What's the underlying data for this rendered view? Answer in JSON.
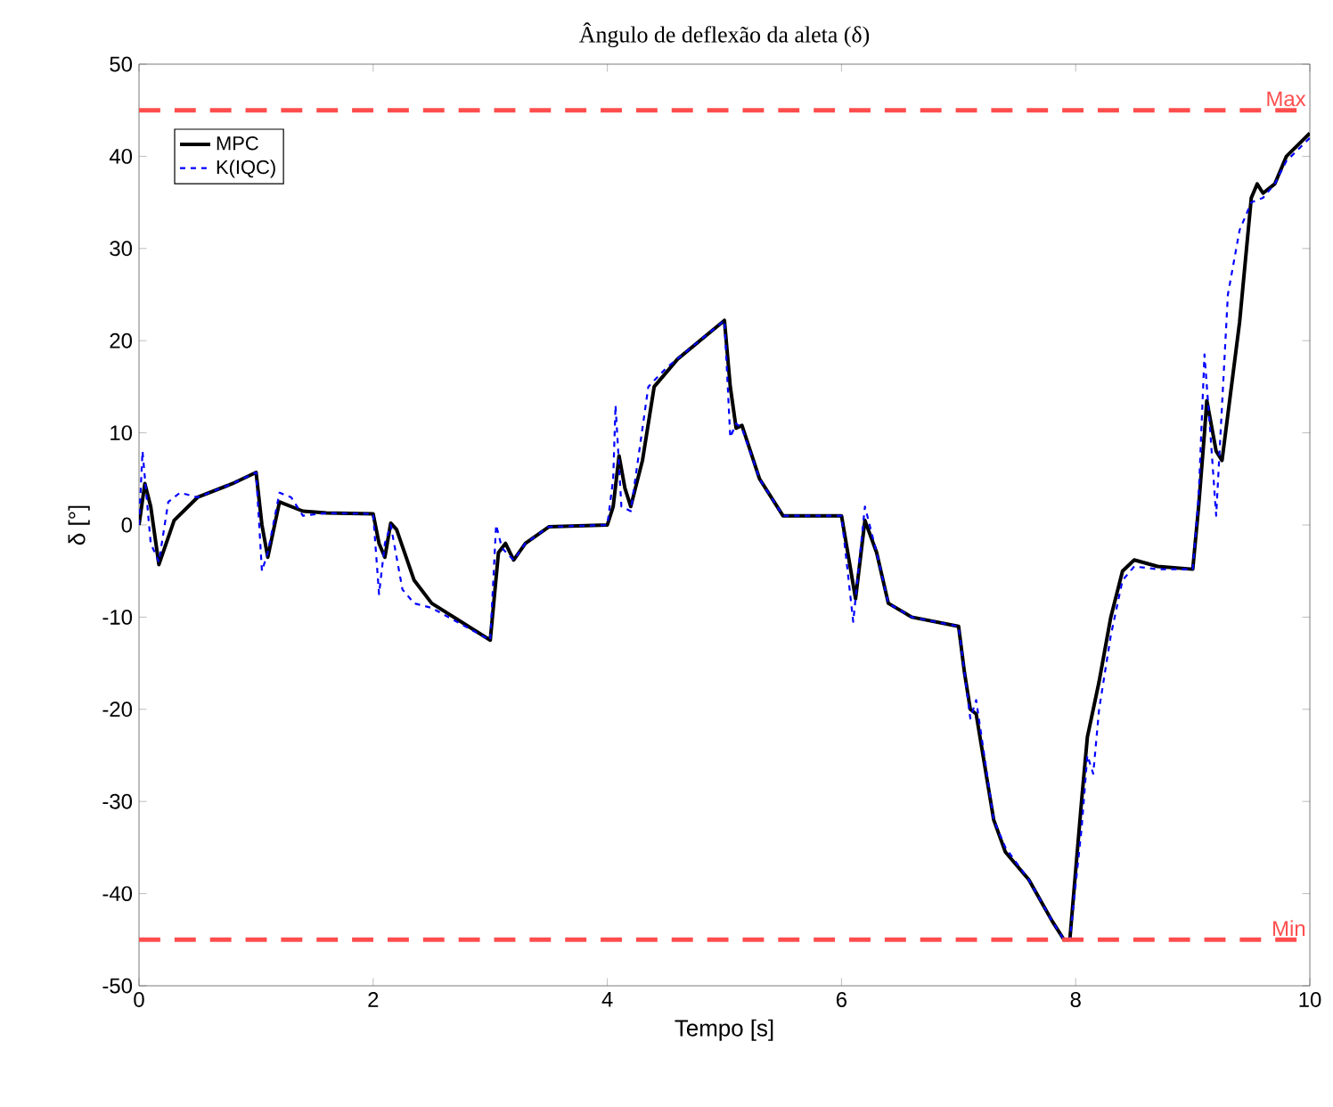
{
  "chart_data": {
    "type": "line",
    "title": "Ângulo de deflexão da aleta (δ)",
    "xlabel": "Tempo [s]",
    "ylabel": "δ [°]",
    "xlim": [
      0,
      10
    ],
    "ylim": [
      -50,
      50
    ],
    "xticks": [
      0,
      2,
      4,
      6,
      8,
      10
    ],
    "yticks": [
      -50,
      -40,
      -30,
      -20,
      -10,
      0,
      10,
      20,
      30,
      40,
      50
    ],
    "grid": false,
    "legend": "top left",
    "ref_lines": [
      {
        "axis": "y",
        "value": 45,
        "label": "Max",
        "color": "#ff4d4d",
        "line_style": "dashed"
      },
      {
        "axis": "y",
        "value": -45,
        "label": "Min",
        "color": "#ff4d4d",
        "line_style": "dashed"
      }
    ],
    "series": [
      {
        "name": "MPC",
        "color": "#000000",
        "line_style": "solid",
        "x": [
          0,
          0.05,
          0.1,
          0.17,
          0.3,
          0.5,
          0.8,
          1.0,
          1.05,
          1.1,
          1.2,
          1.4,
          1.6,
          2.0,
          2.05,
          2.1,
          2.15,
          2.2,
          2.35,
          2.5,
          3.0,
          3.07,
          3.13,
          3.2,
          3.3,
          3.5,
          4.0,
          4.05,
          4.1,
          4.15,
          4.2,
          4.3,
          4.4,
          4.6,
          5.0,
          5.05,
          5.1,
          5.15,
          5.3,
          5.5,
          6.0,
          6.08,
          6.12,
          6.2,
          6.3,
          6.4,
          6.6,
          7.0,
          7.05,
          7.1,
          7.15,
          7.3,
          7.4,
          7.6,
          7.8,
          7.9,
          7.95,
          8.05,
          8.1,
          8.2,
          8.3,
          8.4,
          8.5,
          8.7,
          9.0,
          9.05,
          9.1,
          9.12,
          9.2,
          9.25,
          9.4,
          9.5,
          9.55,
          9.6,
          9.7,
          9.8,
          10
        ],
        "values": [
          0,
          4.5,
          2,
          -4.3,
          0.5,
          3,
          4.5,
          5.7,
          0,
          -3.5,
          2.5,
          1.5,
          1.3,
          1.2,
          -2,
          -3.5,
          0.2,
          -0.5,
          -6,
          -8.5,
          -12.5,
          -3,
          -2,
          -3.8,
          -2,
          -0.2,
          0,
          2,
          7.5,
          4,
          2,
          7,
          15,
          18,
          22.2,
          15,
          10.5,
          10.8,
          5,
          1,
          1,
          -5,
          -8,
          0.5,
          -3,
          -8.5,
          -10,
          -11,
          -16,
          -20,
          -20.5,
          -32,
          -35.5,
          -38.5,
          -43,
          -45,
          -45,
          -30,
          -23,
          -17,
          -10,
          -5,
          -3.8,
          -4.5,
          -4.8,
          2,
          10,
          13.5,
          8,
          7,
          22,
          35.5,
          37,
          36,
          37,
          40,
          42.5
        ]
      },
      {
        "name": "K(IQC)",
        "color": "#0000ff",
        "line_style": "dashed",
        "x": [
          0,
          0.03,
          0.1,
          0.17,
          0.25,
          0.35,
          0.5,
          0.8,
          1.0,
          1.05,
          1.1,
          1.2,
          1.3,
          1.4,
          1.6,
          2.0,
          2.05,
          2.1,
          2.15,
          2.25,
          2.35,
          2.5,
          3.0,
          3.05,
          3.1,
          3.2,
          3.3,
          3.5,
          4.0,
          4.05,
          4.07,
          4.12,
          4.2,
          4.35,
          4.5,
          5.0,
          5.05,
          5.1,
          5.15,
          5.3,
          5.5,
          6.0,
          6.1,
          6.2,
          6.3,
          6.4,
          6.6,
          7.0,
          7.05,
          7.1,
          7.15,
          7.3,
          7.4,
          7.6,
          7.8,
          7.9,
          7.95,
          8.05,
          8.1,
          8.15,
          8.2,
          8.3,
          8.4,
          8.5,
          8.7,
          9.0,
          9.05,
          9.1,
          9.15,
          9.2,
          9.3,
          9.4,
          9.5,
          9.6,
          9.7,
          9.8,
          10
        ],
        "values": [
          0,
          8,
          -2,
          -4,
          2.5,
          3.5,
          3,
          4.5,
          5.7,
          -5,
          -3,
          3.5,
          3,
          1,
          1.3,
          1.2,
          -7.5,
          -2,
          0,
          -7,
          -8.5,
          -9,
          -12.5,
          0,
          -2.5,
          -3.8,
          -2,
          -0.2,
          0,
          5,
          13,
          2,
          1.5,
          15,
          17,
          22.2,
          9.5,
          11,
          10.5,
          5,
          1,
          1,
          -10.5,
          2,
          -3,
          -8.5,
          -10,
          -11,
          -16,
          -21,
          -19,
          -32,
          -35,
          -38.5,
          -43,
          -45,
          -45,
          -33,
          -25,
          -27,
          -20,
          -12,
          -6,
          -4.5,
          -4.8,
          -4.8,
          3,
          18.5,
          10,
          1,
          25,
          32,
          35,
          35.5,
          37,
          39.5,
          42
        ]
      }
    ]
  }
}
